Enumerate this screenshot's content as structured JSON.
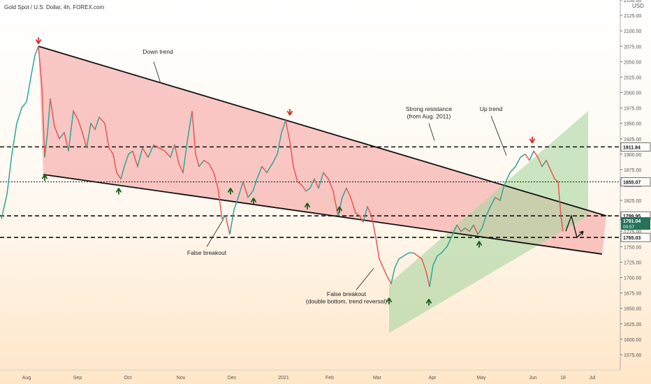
{
  "chart_data": {
    "type": "line",
    "title": "Gold Spot / U.S. Dollar, 4h, FOREX.com",
    "currency": "USD",
    "ylim": [
      1550,
      2150
    ],
    "y_ticks": [
      1575,
      1600,
      1625,
      1650,
      1675,
      1700,
      1725,
      1750,
      1775,
      1800,
      1825,
      1850,
      1875,
      1900,
      1925,
      1950,
      1975,
      2000,
      2025,
      2050,
      2075,
      2100,
      2125,
      2150
    ],
    "x_ticks": [
      {
        "t": 38,
        "label": "Aug"
      },
      {
        "t": 111,
        "label": "Sep"
      },
      {
        "t": 183,
        "label": "Oct"
      },
      {
        "t": 259,
        "label": "Nov"
      },
      {
        "t": 332,
        "label": "Dec"
      },
      {
        "t": 406,
        "label": "2021"
      },
      {
        "t": 472,
        "label": "Feb"
      },
      {
        "t": 540,
        "label": "Mar"
      },
      {
        "t": 619,
        "label": "Apr"
      },
      {
        "t": 689,
        "label": "May"
      },
      {
        "t": 763,
        "label": "Jun"
      },
      {
        "t": 806,
        "label": "18"
      },
      {
        "t": 848,
        "label": "Jul"
      }
    ],
    "series": [
      {
        "type": "price",
        "points": [
          [
            2,
            1795
          ],
          [
            10,
            1835
          ],
          [
            17,
            1900
          ],
          [
            24,
            1950
          ],
          [
            31,
            1975
          ],
          [
            38,
            1985
          ],
          [
            45,
            2030
          ],
          [
            50,
            2060
          ],
          [
            55,
            2075
          ],
          [
            60,
            2010
          ],
          [
            64,
            1895
          ],
          [
            68,
            1935
          ],
          [
            72,
            1990
          ],
          [
            78,
            1945
          ],
          [
            85,
            1925
          ],
          [
            92,
            1935
          ],
          [
            98,
            1905
          ],
          [
            105,
            1970
          ],
          [
            112,
            1955
          ],
          [
            118,
            1935
          ],
          [
            124,
            1910
          ],
          [
            130,
            1950
          ],
          [
            136,
            1940
          ],
          [
            142,
            1960
          ],
          [
            150,
            1950
          ],
          [
            156,
            1910
          ],
          [
            162,
            1900
          ],
          [
            167,
            1870
          ],
          [
            173,
            1860
          ],
          [
            178,
            1880
          ],
          [
            184,
            1900
          ],
          [
            190,
            1905
          ],
          [
            197,
            1880
          ],
          [
            204,
            1910
          ],
          [
            212,
            1895
          ],
          [
            220,
            1915
          ],
          [
            228,
            1910
          ],
          [
            236,
            1905
          ],
          [
            244,
            1895
          ],
          [
            250,
            1915
          ],
          [
            256,
            1885
          ],
          [
            262,
            1870
          ],
          [
            268,
            1920
          ],
          [
            275,
            1970
          ],
          [
            280,
            1900
          ],
          [
            285,
            1880
          ],
          [
            292,
            1890
          ],
          [
            299,
            1885
          ],
          [
            306,
            1870
          ],
          [
            312,
            1845
          ],
          [
            318,
            1795
          ],
          [
            323,
            1800
          ],
          [
            329,
            1770
          ],
          [
            335,
            1810
          ],
          [
            341,
            1830
          ],
          [
            348,
            1855
          ],
          [
            355,
            1830
          ],
          [
            362,
            1840
          ],
          [
            368,
            1860
          ],
          [
            375,
            1880
          ],
          [
            382,
            1870
          ],
          [
            390,
            1885
          ],
          [
            397,
            1900
          ],
          [
            403,
            1935
          ],
          [
            409,
            1955
          ],
          [
            415,
            1920
          ],
          [
            420,
            1880
          ],
          [
            426,
            1855
          ],
          [
            432,
            1850
          ],
          [
            438,
            1840
          ],
          [
            444,
            1845
          ],
          [
            450,
            1860
          ],
          [
            456,
            1845
          ],
          [
            463,
            1870
          ],
          [
            470,
            1860
          ],
          [
            477,
            1840
          ],
          [
            484,
            1800
          ],
          [
            490,
            1830
          ],
          [
            496,
            1845
          ],
          [
            502,
            1830
          ],
          [
            509,
            1805
          ],
          [
            515,
            1800
          ],
          [
            520,
            1790
          ],
          [
            526,
            1815
          ],
          [
            532,
            1800
          ],
          [
            538,
            1765
          ],
          [
            543,
            1730
          ],
          [
            549,
            1715
          ],
          [
            555,
            1700
          ],
          [
            560,
            1690
          ],
          [
            565,
            1715
          ],
          [
            571,
            1730
          ],
          [
            578,
            1735
          ],
          [
            585,
            1740
          ],
          [
            592,
            1740
          ],
          [
            598,
            1735
          ],
          [
            604,
            1730
          ],
          [
            610,
            1710
          ],
          [
            615,
            1685
          ],
          [
            620,
            1720
          ],
          [
            626,
            1735
          ],
          [
            632,
            1740
          ],
          [
            640,
            1750
          ],
          [
            648,
            1770
          ],
          [
            654,
            1785
          ],
          [
            660,
            1775
          ],
          [
            666,
            1780
          ],
          [
            672,
            1775
          ],
          [
            678,
            1785
          ],
          [
            684,
            1770
          ],
          [
            690,
            1780
          ],
          [
            696,
            1800
          ],
          [
            702,
            1815
          ],
          [
            709,
            1830
          ],
          [
            716,
            1825
          ],
          [
            722,
            1850
          ],
          [
            730,
            1870
          ],
          [
            738,
            1880
          ],
          [
            745,
            1895
          ],
          [
            752,
            1900
          ],
          [
            758,
            1890
          ],
          [
            764,
            1905
          ],
          [
            770,
            1895
          ],
          [
            776,
            1880
          ],
          [
            782,
            1890
          ],
          [
            788,
            1875
          ],
          [
            794,
            1860
          ],
          [
            799,
            1855
          ],
          [
            803,
            1800
          ],
          [
            806,
            1775
          ]
        ]
      },
      {
        "type": "projection",
        "points": [
          [
            810,
            1775
          ],
          [
            818,
            1800
          ],
          [
            826,
            1765
          ],
          [
            835,
            1775
          ]
        ]
      }
    ],
    "trendlines": [
      {
        "name": "Down trend",
        "from": [
          55,
          2075
        ],
        "to": [
          868,
          1800
        ]
      },
      {
        "name": "",
        "from": [
          62,
          1867
        ],
        "to": [
          862,
          1738
        ]
      }
    ],
    "horizontal_levels": [
      {
        "value": 1911.84,
        "label": "1911.84",
        "style": "dashed"
      },
      {
        "value": 1855.07,
        "label": "1855.07",
        "style": "dotted"
      },
      {
        "value": 1799.95,
        "label": "1799.95",
        "style": "dashed"
      },
      {
        "value": 1765.03,
        "label": "1765.03",
        "style": "dashed"
      }
    ],
    "last_price": {
      "value": "1791.04",
      "timer": "00:57"
    },
    "channel": {
      "name": "Up trend",
      "lower": [
        [
          557,
          1610
        ],
        [
          842,
          1800
        ]
      ],
      "upper": [
        [
          557,
          1690
        ],
        [
          842,
          1970
        ]
      ]
    },
    "annotations": [
      {
        "text": "Down trend",
        "at": [
          226,
          2063
        ]
      },
      {
        "text": "Strong resistance",
        "at": [
          614,
          1970
        ]
      },
      {
        "text": "(from Aug. 2011)",
        "at": [
          614,
          1958
        ]
      },
      {
        "text": "Up trend",
        "at": [
          703,
          1970
        ]
      },
      {
        "text": "False breakout",
        "at": [
          296,
          1737
        ]
      },
      {
        "text": "False breakout",
        "at": [
          496,
          1670
        ]
      },
      {
        "text": "(double bottom, trend reversal)",
        "at": [
          496,
          1658
        ]
      }
    ],
    "markers": {
      "down": [
        [
          55,
          2086
        ],
        [
          415,
          1970
        ],
        [
          762,
          1925
        ]
      ],
      "up": [
        [
          64,
          1860
        ],
        [
          170,
          1838
        ],
        [
          330,
          1838
        ],
        [
          363,
          1822
        ],
        [
          440,
          1814
        ],
        [
          486,
          1808
        ],
        [
          557,
          1660
        ],
        [
          614,
          1658
        ],
        [
          686,
          1752
        ]
      ]
    }
  },
  "colors": {
    "red_zone": "#f49a9a",
    "green_zone": "#a9d6a0",
    "up_marker": "#1b5e20",
    "down_marker": "#d32f2f",
    "last_price_tag": "#26725a"
  }
}
